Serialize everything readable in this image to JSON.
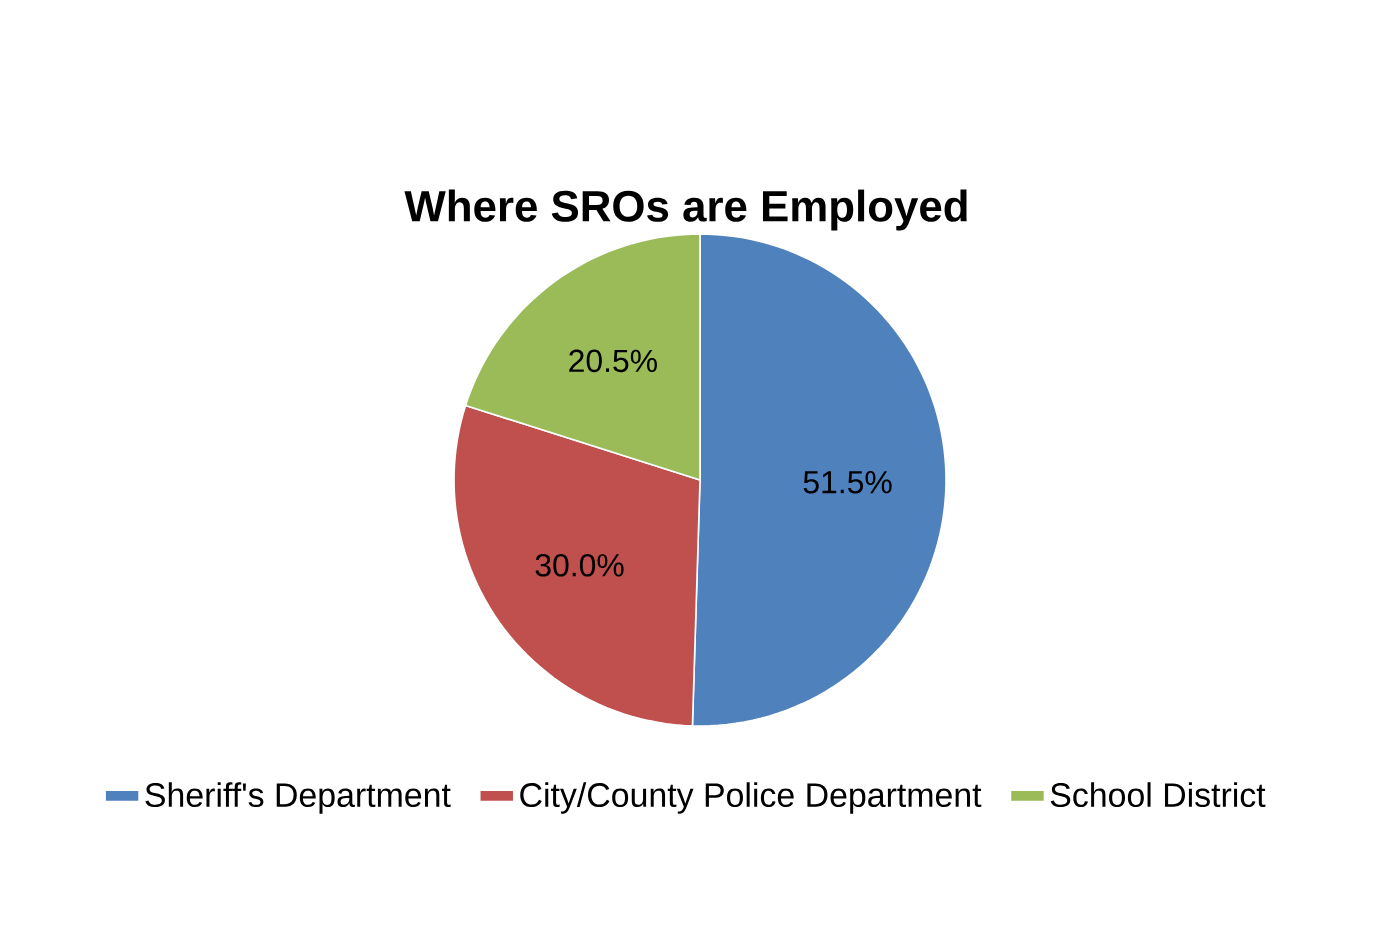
{
  "chart_data": {
    "type": "pie",
    "title": "Where SROs are Employed",
    "categories": [
      "Sheriff's Department",
      "City/County Police Department",
      "School District"
    ],
    "values": [
      51.5,
      30.0,
      20.5
    ],
    "colors": [
      "#4f81bd",
      "#c0504d",
      "#9bbb59"
    ],
    "value_labels": [
      "51.5%",
      "30.0%",
      "20.5%"
    ],
    "legend": "bottom"
  }
}
